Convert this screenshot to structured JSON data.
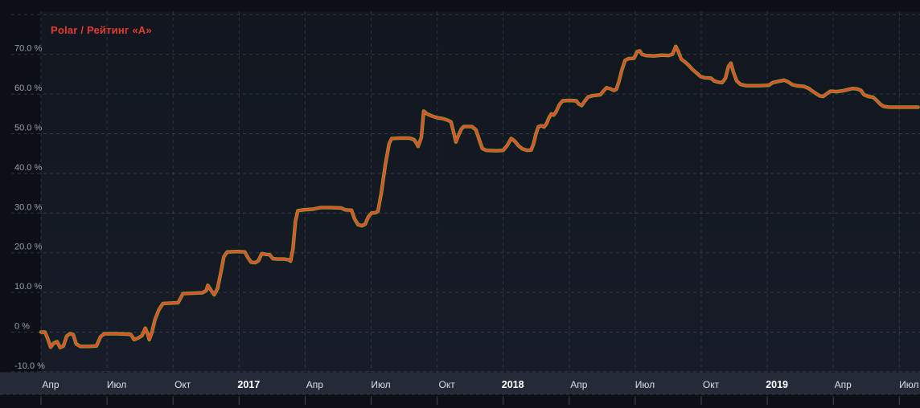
{
  "chart_data": {
    "type": "line",
    "title": "Polar / Рейтинг «А»",
    "legend_color": "#e23c30",
    "grid": true,
    "legend_position": "top-left",
    "ylabel": "",
    "xlabel": "",
    "ylim": [
      -10,
      81
    ],
    "y_unit": "%",
    "y_ticks": [
      {
        "value": 80,
        "label": null
      },
      {
        "value": 70,
        "label": "70.0 %"
      },
      {
        "value": 60,
        "label": "60.0 %"
      },
      {
        "value": 50,
        "label": "50.0 %"
      },
      {
        "value": 40,
        "label": "40.0 %"
      },
      {
        "value": 30,
        "label": "30.0 %"
      },
      {
        "value": 20,
        "label": "20.0 %"
      },
      {
        "value": 10,
        "label": "10.0 %"
      },
      {
        "value": 0,
        "label": "0 %"
      },
      {
        "value": -10,
        "label": "-10.0 %"
      }
    ],
    "x_ticks": [
      {
        "label": "Апр",
        "year": false
      },
      {
        "label": "Июл",
        "year": false
      },
      {
        "label": "Окт",
        "year": false
      },
      {
        "label": "2017",
        "year": true
      },
      {
        "label": "Апр",
        "year": false
      },
      {
        "label": "Июл",
        "year": false
      },
      {
        "label": "Окт",
        "year": false
      },
      {
        "label": "2018",
        "year": true
      },
      {
        "label": "Апр",
        "year": false
      },
      {
        "label": "Июл",
        "year": false
      },
      {
        "label": "Окт",
        "year": false
      },
      {
        "label": "2019",
        "year": true
      },
      {
        "label": "Апр",
        "year": false
      },
      {
        "label": "Июл",
        "year": false
      }
    ],
    "x_unit": "months from Апр 2016, quarterly ticks",
    "series": [
      {
        "name": "Рейтинг «А»",
        "color": "#85a92c",
        "note": "benchmark line, visually coincides with Polar, peeks at edges",
        "points_same_as": "Polar"
      },
      {
        "name": "Polar",
        "color": "#e54b2c",
        "points": [
          [
            0.0,
            0.0
          ],
          [
            0.18,
            0.0
          ],
          [
            0.33,
            -2.0
          ],
          [
            0.44,
            -3.8
          ],
          [
            0.58,
            -2.8
          ],
          [
            0.73,
            -2.4
          ],
          [
            0.87,
            -3.9
          ],
          [
            1.02,
            -3.5
          ],
          [
            1.17,
            -1.0
          ],
          [
            1.31,
            -0.4
          ],
          [
            1.46,
            -0.6
          ],
          [
            1.6,
            -3.0
          ],
          [
            1.79,
            -3.6
          ],
          [
            2.15,
            -3.6
          ],
          [
            2.52,
            -3.5
          ],
          [
            2.7,
            -1.2
          ],
          [
            2.88,
            -0.4
          ],
          [
            3.43,
            -0.4
          ],
          [
            3.9,
            -0.5
          ],
          [
            4.08,
            -0.6
          ],
          [
            4.23,
            -1.9
          ],
          [
            4.41,
            -1.5
          ],
          [
            4.59,
            -0.9
          ],
          [
            4.74,
            1.0
          ],
          [
            4.85,
            -0.5
          ],
          [
            4.92,
            -1.9
          ],
          [
            5.03,
            -0.2
          ],
          [
            5.18,
            3.2
          ],
          [
            5.36,
            5.7
          ],
          [
            5.54,
            7.2
          ],
          [
            5.87,
            7.3
          ],
          [
            6.23,
            7.4
          ],
          [
            6.45,
            9.7
          ],
          [
            6.89,
            9.8
          ],
          [
            7.33,
            9.9
          ],
          [
            7.51,
            10.5
          ],
          [
            7.58,
            11.8
          ],
          [
            7.73,
            10.5
          ],
          [
            7.87,
            9.4
          ],
          [
            8.02,
            11.0
          ],
          [
            8.17,
            15.0
          ],
          [
            8.31,
            19.0
          ],
          [
            8.46,
            20.2
          ],
          [
            8.9,
            20.3
          ],
          [
            9.26,
            20.2
          ],
          [
            9.41,
            18.7
          ],
          [
            9.55,
            17.6
          ],
          [
            9.73,
            17.5
          ],
          [
            9.88,
            18.0
          ],
          [
            10.03,
            19.8
          ],
          [
            10.21,
            19.6
          ],
          [
            10.39,
            19.5
          ],
          [
            10.54,
            18.5
          ],
          [
            10.72,
            18.4
          ],
          [
            11.08,
            18.4
          ],
          [
            11.27,
            18.2
          ],
          [
            11.34,
            17.9
          ],
          [
            11.45,
            21.0
          ],
          [
            11.56,
            28.0
          ],
          [
            11.67,
            30.6
          ],
          [
            11.92,
            30.8
          ],
          [
            12.36,
            31.0
          ],
          [
            12.72,
            31.4
          ],
          [
            13.16,
            31.4
          ],
          [
            13.63,
            31.3
          ],
          [
            13.82,
            30.8
          ],
          [
            14.11,
            30.7
          ],
          [
            14.25,
            28.5
          ],
          [
            14.4,
            27.1
          ],
          [
            14.58,
            26.8
          ],
          [
            14.73,
            27.2
          ],
          [
            14.87,
            29.0
          ],
          [
            15.02,
            30.0
          ],
          [
            15.2,
            30.1
          ],
          [
            15.31,
            30.5
          ],
          [
            15.46,
            35.0
          ],
          [
            15.64,
            42.0
          ],
          [
            15.82,
            47.5
          ],
          [
            15.93,
            48.8
          ],
          [
            16.3,
            48.9
          ],
          [
            16.73,
            48.9
          ],
          [
            16.95,
            48.5
          ],
          [
            17.06,
            47.6
          ],
          [
            17.13,
            46.8
          ],
          [
            17.28,
            49.0
          ],
          [
            17.39,
            55.7
          ],
          [
            17.54,
            55.0
          ],
          [
            17.75,
            54.5
          ],
          [
            18.01,
            54.0
          ],
          [
            18.26,
            53.8
          ],
          [
            18.48,
            53.4
          ],
          [
            18.63,
            53.0
          ],
          [
            18.74,
            50.5
          ],
          [
            18.85,
            47.9
          ],
          [
            18.96,
            49.5
          ],
          [
            19.1,
            51.2
          ],
          [
            19.21,
            51.8
          ],
          [
            19.58,
            51.8
          ],
          [
            19.76,
            51.0
          ],
          [
            19.91,
            48.5
          ],
          [
            20.05,
            46.3
          ],
          [
            20.23,
            45.8
          ],
          [
            20.67,
            45.7
          ],
          [
            21.0,
            45.8
          ],
          [
            21.18,
            47.0
          ],
          [
            21.36,
            48.8
          ],
          [
            21.51,
            48.2
          ],
          [
            21.69,
            47.0
          ],
          [
            21.87,
            46.2
          ],
          [
            22.09,
            45.8
          ],
          [
            22.27,
            45.9
          ],
          [
            22.38,
            47.5
          ],
          [
            22.49,
            50.0
          ],
          [
            22.6,
            51.8
          ],
          [
            22.75,
            52.0
          ],
          [
            22.86,
            51.7
          ],
          [
            22.97,
            52.5
          ],
          [
            23.08,
            54.0
          ],
          [
            23.19,
            55.0
          ],
          [
            23.3,
            54.7
          ],
          [
            23.4,
            55.5
          ],
          [
            23.55,
            57.3
          ],
          [
            23.7,
            58.3
          ],
          [
            24.02,
            58.4
          ],
          [
            24.32,
            58.3
          ],
          [
            24.43,
            57.5
          ],
          [
            24.57,
            57.1
          ],
          [
            24.72,
            58.3
          ],
          [
            24.86,
            59.3
          ],
          [
            25.08,
            59.6
          ],
          [
            25.41,
            59.8
          ],
          [
            25.56,
            60.8
          ],
          [
            25.7,
            61.6
          ],
          [
            25.88,
            61.3
          ],
          [
            26.03,
            60.9
          ],
          [
            26.14,
            61.2
          ],
          [
            26.25,
            63.0
          ],
          [
            26.39,
            66.0
          ],
          [
            26.54,
            68.5
          ],
          [
            26.69,
            68.9
          ],
          [
            26.94,
            69.0
          ],
          [
            27.09,
            70.7
          ],
          [
            27.2,
            70.9
          ],
          [
            27.31,
            70.0
          ],
          [
            27.49,
            69.7
          ],
          [
            27.85,
            69.6
          ],
          [
            28.22,
            69.8
          ],
          [
            28.51,
            69.7
          ],
          [
            28.69,
            70.0
          ],
          [
            28.84,
            72.0
          ],
          [
            28.95,
            70.8
          ],
          [
            29.09,
            68.8
          ],
          [
            29.24,
            68.2
          ],
          [
            29.42,
            67.3
          ],
          [
            29.6,
            66.2
          ],
          [
            29.79,
            65.3
          ],
          [
            29.97,
            64.4
          ],
          [
            30.15,
            64.1
          ],
          [
            30.44,
            64.0
          ],
          [
            30.59,
            63.3
          ],
          [
            30.77,
            63.0
          ],
          [
            30.95,
            62.9
          ],
          [
            31.1,
            64.0
          ],
          [
            31.24,
            67.0
          ],
          [
            31.35,
            67.8
          ],
          [
            31.46,
            65.5
          ],
          [
            31.61,
            63.3
          ],
          [
            31.79,
            62.4
          ],
          [
            32.05,
            62.1
          ],
          [
            32.59,
            62.1
          ],
          [
            33.07,
            62.2
          ],
          [
            33.25,
            62.9
          ],
          [
            33.5,
            63.2
          ],
          [
            33.76,
            63.5
          ],
          [
            33.94,
            63.1
          ],
          [
            34.12,
            62.4
          ],
          [
            34.34,
            62.1
          ],
          [
            34.67,
            61.9
          ],
          [
            34.89,
            61.4
          ],
          [
            35.03,
            60.8
          ],
          [
            35.22,
            60.1
          ],
          [
            35.4,
            59.5
          ],
          [
            35.54,
            59.4
          ],
          [
            35.73,
            60.2
          ],
          [
            35.87,
            60.7
          ],
          [
            36.16,
            60.6
          ],
          [
            36.42,
            60.8
          ],
          [
            36.64,
            61.1
          ],
          [
            36.86,
            61.4
          ],
          [
            37.08,
            61.3
          ],
          [
            37.26,
            60.9
          ],
          [
            37.4,
            59.8
          ],
          [
            37.59,
            59.4
          ],
          [
            37.8,
            59.2
          ],
          [
            37.95,
            58.5
          ],
          [
            38.14,
            57.4
          ],
          [
            38.28,
            56.9
          ],
          [
            38.54,
            56.7
          ],
          [
            38.97,
            56.7
          ],
          [
            39.52,
            56.7
          ],
          [
            39.85,
            56.7
          ]
        ]
      }
    ],
    "colors": {
      "page_bg": "#0c1016",
      "plot_bg_top": "#11161f",
      "plot_bg_bottom": "#171c28",
      "axis_band_bg": "#242a37",
      "gridline": "#9aa4b5",
      "y_label": "#9ba1ab",
      "month_label": "#dcdfe5",
      "year_label": "#ffffff",
      "axis_tick": "#424957"
    }
  }
}
